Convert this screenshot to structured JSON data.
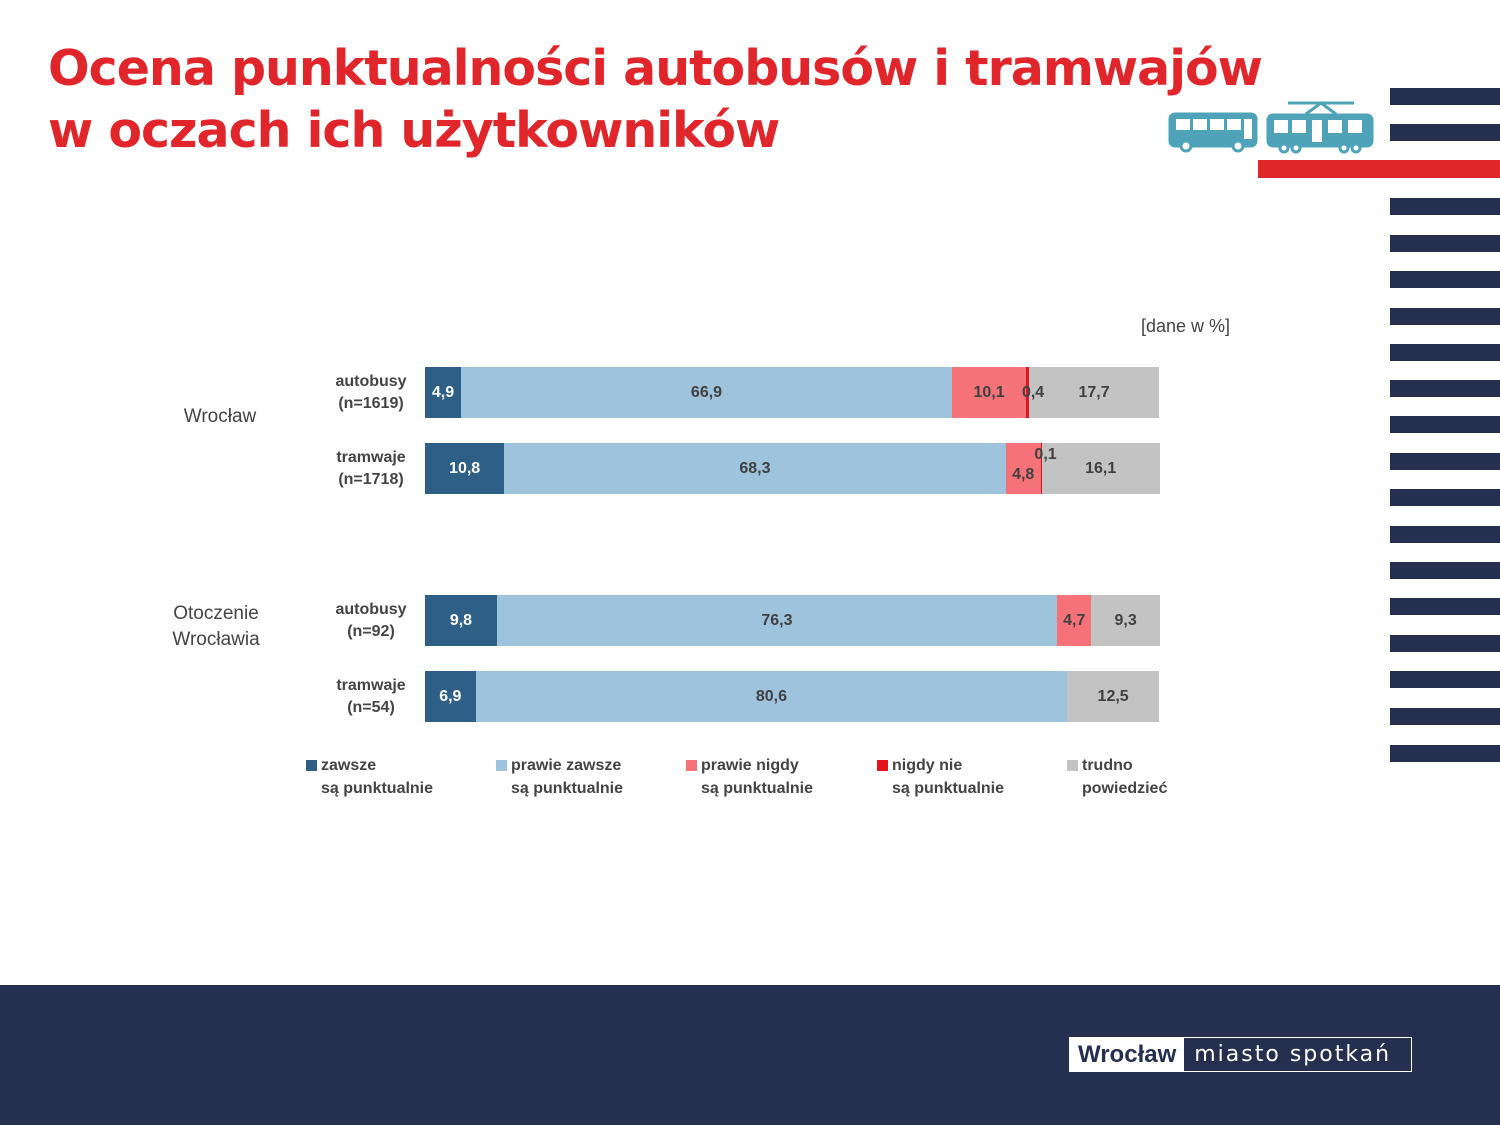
{
  "title": {
    "line1": "Ocena punktualności autobusów i tramwajów",
    "line2": "w oczach ich użytkowników"
  },
  "unit_note": "[dane w %]",
  "footer": {
    "logo_city": "Wrocław",
    "logo_tagline": "miasto spotkań"
  },
  "icons": [
    "bus-icon",
    "tram-icon"
  ],
  "colors": {
    "title_red": "#e0252b",
    "navy": "#252f50",
    "zawsze": "#2e5f86",
    "prawie_zawsze": "#9ec3dc",
    "prawie_nigdy": "#f57279",
    "nigdy": "#e3141c",
    "trudno": "#c3c3c3",
    "icon_teal": "#4fa3b8"
  },
  "chart_data": {
    "type": "bar",
    "orientation": "horizontal",
    "stacked": true,
    "unit": "%",
    "groups": [
      {
        "label_lines": [
          "Wrocław"
        ],
        "categories": [
          0,
          1
        ]
      },
      {
        "label_lines": [
          "Otoczenie",
          "Wrocławia"
        ],
        "categories": [
          2,
          3
        ]
      }
    ],
    "categories": [
      {
        "name": "autobusy",
        "n": "(n=1619)"
      },
      {
        "name": "tramwaje",
        "n": "(n=1718)"
      },
      {
        "name": "autobusy",
        "n": "(n=92)"
      },
      {
        "name": "tramwaje",
        "n": "(n=54)"
      }
    ],
    "series": [
      {
        "name": "zawsze są punktualnie",
        "legend_lines": [
          "zawsze",
          "są punktualnie"
        ],
        "values": [
          4.9,
          10.8,
          9.8,
          6.9
        ],
        "labels": [
          "4,9",
          "10,8",
          "9,8",
          "6,9"
        ]
      },
      {
        "name": "prawie zawsze są punktualnie",
        "legend_lines": [
          "prawie zawsze",
          "są punktualnie"
        ],
        "values": [
          66.9,
          68.3,
          76.3,
          80.6
        ],
        "labels": [
          "66,9",
          "68,3",
          "76,3",
          "80,6"
        ]
      },
      {
        "name": "prawie nigdy są punktualnie",
        "legend_lines": [
          "prawie nigdy",
          "są punktualnie"
        ],
        "values": [
          10.1,
          4.8,
          4.7,
          0
        ],
        "labels": [
          "10,1",
          "4,8",
          "4,7",
          ""
        ]
      },
      {
        "name": "nigdy nie są punktualnie",
        "legend_lines": [
          "nigdy nie",
          "są punktualnie"
        ],
        "values": [
          0.4,
          0.1,
          0,
          0
        ],
        "labels": [
          "0,4",
          "0,1",
          "",
          ""
        ]
      },
      {
        "name": "trudno powiedzieć",
        "legend_lines": [
          "trudno",
          "powiedzieć"
        ],
        "values": [
          17.7,
          16.1,
          9.3,
          12.5
        ],
        "labels": [
          "17,7",
          "16,1",
          "9,3",
          "12,5"
        ]
      }
    ],
    "xlim": [
      0,
      100
    ],
    "legend_position": "bottom",
    "grid": false
  }
}
